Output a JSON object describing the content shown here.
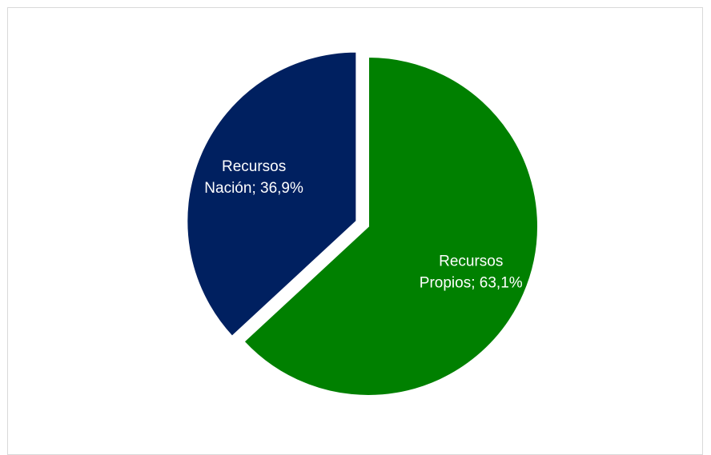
{
  "chart_data": {
    "type": "pie",
    "title": "",
    "series": [
      {
        "name": "",
        "slices": [
          {
            "label": "Recursos Propios",
            "value": 63.1,
            "color": "#008000",
            "label_text": [
              "Recursos",
              "Propios; 63,1%"
            ]
          },
          {
            "label": "Recursos Nación",
            "value": 36.9,
            "color": "#002060",
            "label_text": [
              "Recursos",
              "Nación; 36,9%"
            ]
          }
        ]
      }
    ],
    "start_angle_deg": 0,
    "direction": "clockwise",
    "exploded_slice": "Recursos Nación",
    "legend": "none",
    "grid": false
  }
}
